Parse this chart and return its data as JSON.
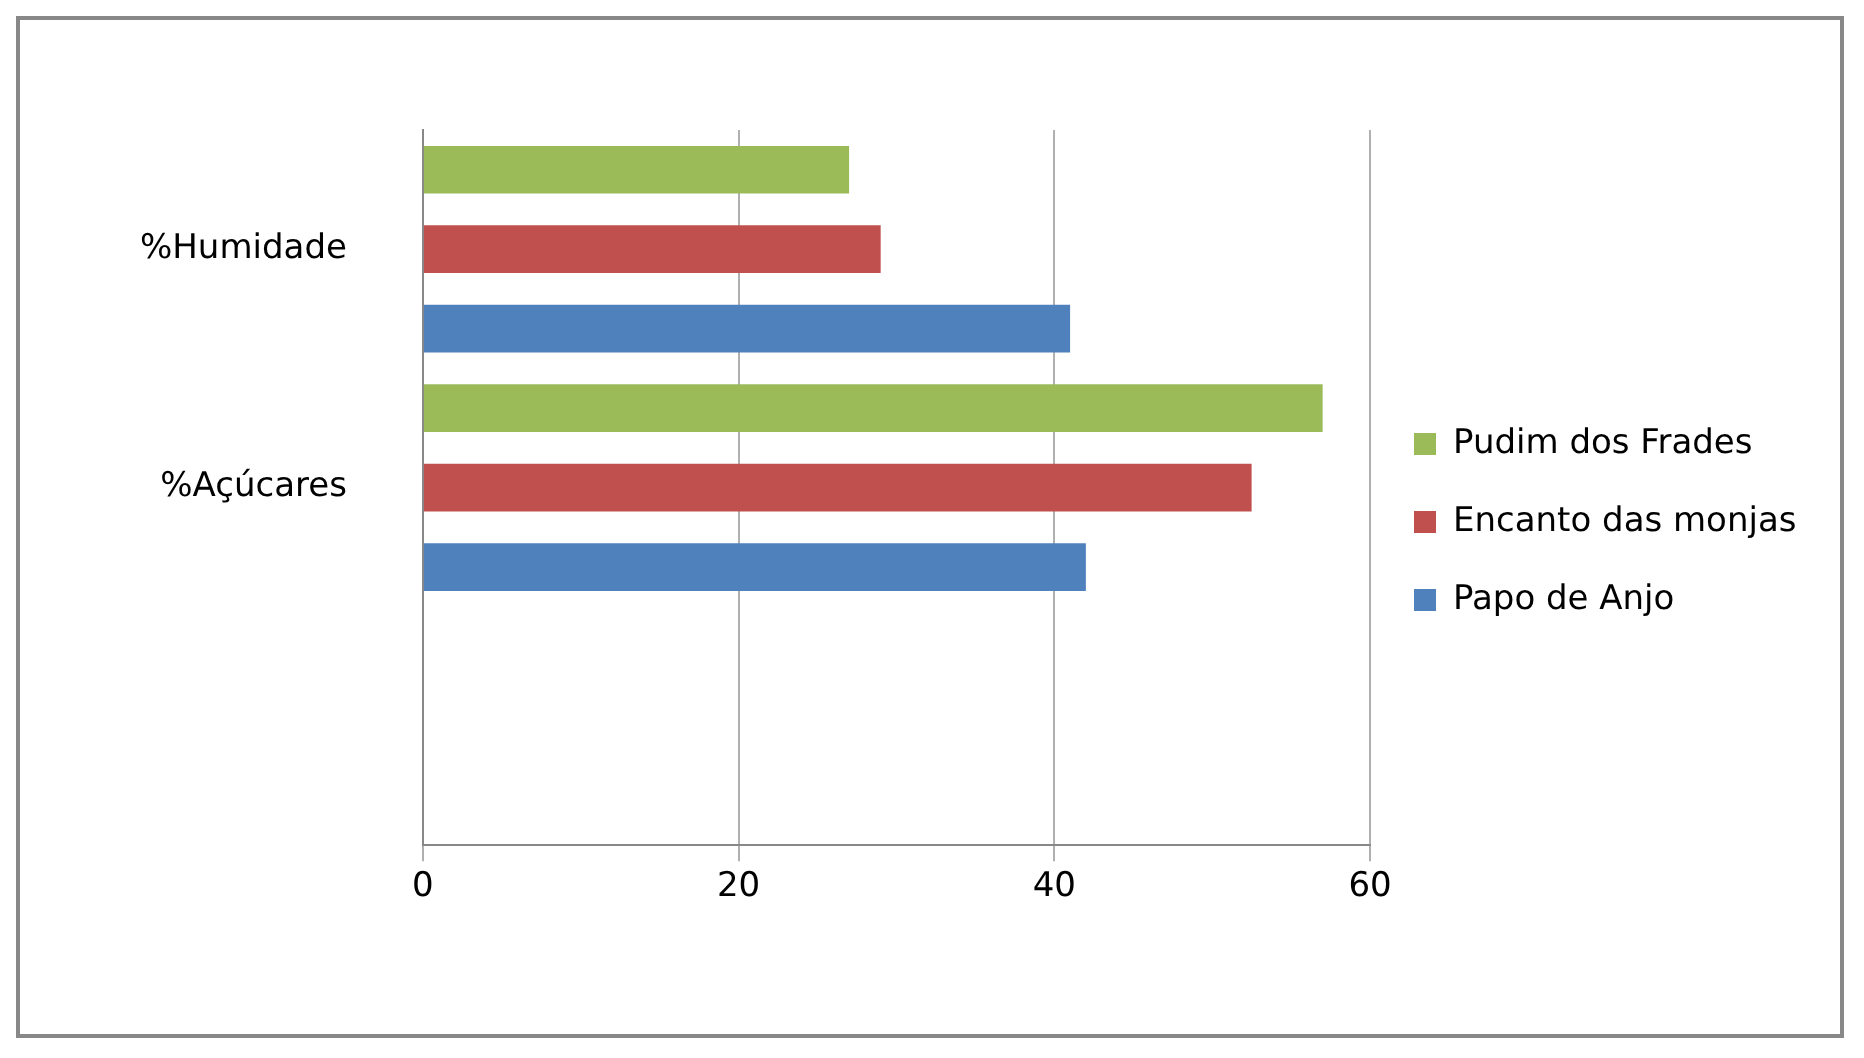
{
  "chart_data": {
    "type": "bar",
    "orientation": "horizontal",
    "categories": [
      "%Humidade",
      "%Açúcares",
      null
    ],
    "series": [
      {
        "name": "Pudim dos Frades",
        "color": "#9bbb59",
        "values": [
          27,
          57,
          null
        ]
      },
      {
        "name": "Encanto das monjas",
        "color": "#c0504d",
        "values": [
          29,
          52.5,
          null
        ]
      },
      {
        "name": "Papo de Anjo",
        "color": "#4f81bd",
        "values": [
          41,
          42,
          null
        ]
      }
    ],
    "xlim": [
      0,
      60
    ],
    "xticks": [
      0,
      20,
      40,
      60
    ],
    "grid": "x",
    "legend": "right"
  }
}
